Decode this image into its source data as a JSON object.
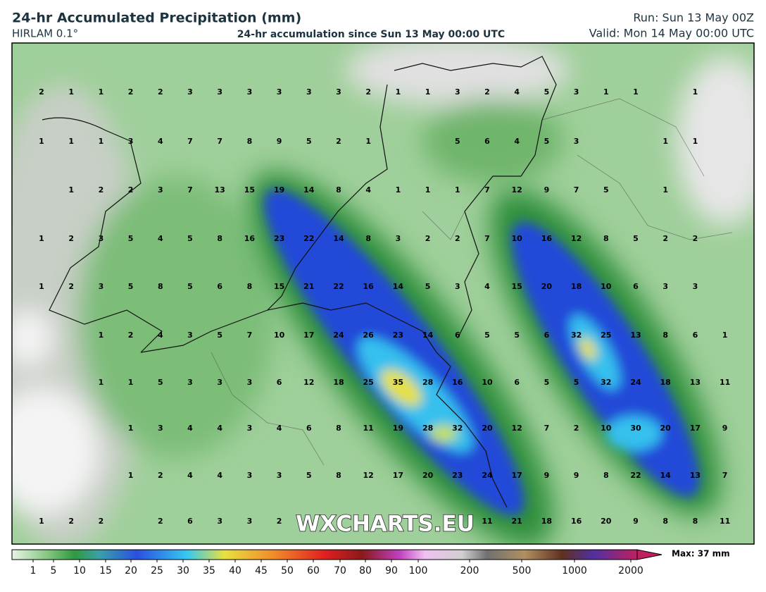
{
  "header": {
    "title": "24-hr Accumulated Precipitation (mm)",
    "model": "HIRLAM 0.1°",
    "subtitle": "24-hr accumulation since Sun 13 May 00:00 UTC",
    "run": "Run: Sun 13 May 00Z",
    "valid": "Valid: Mon 14 May 00:00 UTC"
  },
  "map": {
    "watermark": "WXCHARTS.EU",
    "grid_values": [
      [
        2,
        1,
        1,
        2,
        2,
        3,
        3,
        3,
        3,
        3,
        3,
        2,
        1,
        1,
        3,
        2,
        4,
        5,
        3,
        1,
        1,
        null,
        1,
        null
      ],
      [
        1,
        1,
        1,
        3,
        4,
        7,
        7,
        8,
        9,
        5,
        2,
        1,
        null,
        null,
        5,
        6,
        4,
        5,
        3,
        null,
        null,
        1,
        1,
        null
      ],
      [
        null,
        1,
        2,
        2,
        3,
        7,
        13,
        15,
        19,
        14,
        8,
        4,
        1,
        1,
        1,
        7,
        12,
        9,
        7,
        5,
        null,
        1,
        null,
        null
      ],
      [
        1,
        2,
        3,
        5,
        4,
        5,
        8,
        16,
        23,
        22,
        14,
        8,
        3,
        2,
        2,
        7,
        10,
        16,
        12,
        8,
        5,
        2,
        2,
        null
      ],
      [
        1,
        2,
        3,
        5,
        8,
        5,
        6,
        8,
        15,
        21,
        22,
        16,
        14,
        5,
        3,
        4,
        15,
        20,
        18,
        10,
        6,
        3,
        3,
        null
      ],
      [
        null,
        null,
        1,
        2,
        4,
        3,
        5,
        7,
        10,
        17,
        24,
        26,
        23,
        14,
        6,
        5,
        5,
        6,
        32,
        25,
        13,
        8,
        6,
        1
      ],
      [
        null,
        null,
        1,
        1,
        5,
        3,
        3,
        3,
        6,
        12,
        18,
        25,
        35,
        28,
        16,
        10,
        6,
        5,
        5,
        32,
        24,
        18,
        13,
        11
      ],
      [
        null,
        null,
        null,
        1,
        3,
        4,
        4,
        3,
        4,
        6,
        8,
        11,
        19,
        28,
        32,
        20,
        12,
        7,
        2,
        10,
        30,
        20,
        17,
        9
      ],
      [
        null,
        null,
        null,
        1,
        2,
        4,
        4,
        3,
        3,
        5,
        8,
        12,
        17,
        20,
        23,
        24,
        17,
        9,
        9,
        8,
        22,
        14,
        13,
        7
      ],
      [
        1,
        2,
        2,
        null,
        2,
        6,
        3,
        3,
        2,
        null,
        null,
        null,
        null,
        null,
        null,
        11,
        21,
        18,
        16,
        20,
        9,
        8,
        8,
        11
      ]
    ]
  },
  "colorbar": {
    "ticks": [
      1,
      5,
      10,
      15,
      20,
      25,
      30,
      35,
      40,
      45,
      50,
      60,
      70,
      80,
      90,
      100,
      200,
      500,
      1000,
      2000
    ],
    "max_label": "Max: 37 mm"
  }
}
